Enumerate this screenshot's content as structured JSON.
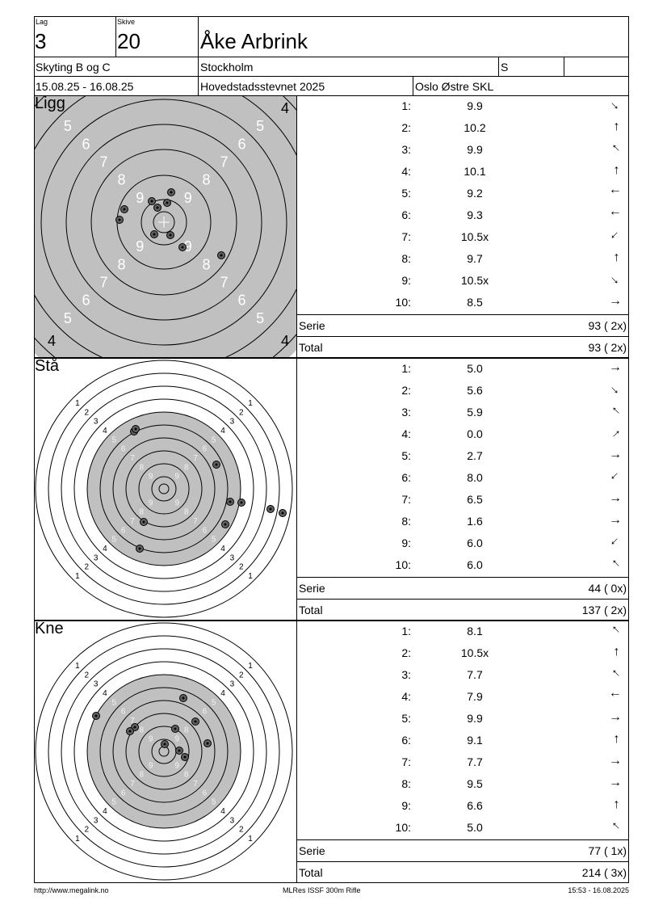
{
  "header": {
    "lag_label": "Lag",
    "lag": "3",
    "skive_label": "Skive",
    "skive": "20",
    "name": "Åke Arbrink",
    "class": "Skyting B og C",
    "city": "Stockholm",
    "flag": "S",
    "extra": "",
    "dates": "15.08.25 - 16.08.25",
    "event": "Hovedstadsstevnet 2025",
    "club": "Oslo Østre SKL"
  },
  "sections": [
    {
      "title": "Ligg",
      "corner_label": "4",
      "shots": [
        {
          "n": "1:",
          "v": "9.9",
          "dir": "down-right"
        },
        {
          "n": "2:",
          "v": "10.2",
          "dir": "up"
        },
        {
          "n": "3:",
          "v": "9.9",
          "dir": "up-left"
        },
        {
          "n": "4:",
          "v": "10.1",
          "dir": "up"
        },
        {
          "n": "5:",
          "v": "9.2",
          "dir": "left"
        },
        {
          "n": "6:",
          "v": "9.3",
          "dir": "left"
        },
        {
          "n": "7:",
          "v": "10.5x",
          "dir": "down-left"
        },
        {
          "n": "8:",
          "v": "9.7",
          "dir": "up"
        },
        {
          "n": "9:",
          "v": "10.5x",
          "dir": "down-right"
        },
        {
          "n": "10:",
          "v": "8.5",
          "dir": "right"
        }
      ],
      "serie_label": "Serie",
      "serie": "93 ( 2x)",
      "total_label": "Total",
      "total": "93 ( 2x)"
    },
    {
      "title": "Stå",
      "shots": [
        {
          "n": "1:",
          "v": "5.0",
          "dir": "right"
        },
        {
          "n": "2:",
          "v": "5.6",
          "dir": "down-right"
        },
        {
          "n": "3:",
          "v": "5.9",
          "dir": "up-left"
        },
        {
          "n": "4:",
          "v": "0.0",
          "dir": "up-right"
        },
        {
          "n": "5:",
          "v": "2.7",
          "dir": "right"
        },
        {
          "n": "6:",
          "v": "8.0",
          "dir": "down-left"
        },
        {
          "n": "7:",
          "v": "6.5",
          "dir": "right"
        },
        {
          "n": "8:",
          "v": "1.6",
          "dir": "right"
        },
        {
          "n": "9:",
          "v": "6.0",
          "dir": "down-left"
        },
        {
          "n": "10:",
          "v": "6.0",
          "dir": "up-left"
        }
      ],
      "serie_label": "Serie",
      "serie": "44 ( 0x)",
      "total_label": "Total",
      "total": "137 ( 2x)"
    },
    {
      "title": "Kne",
      "shots": [
        {
          "n": "1:",
          "v": "8.1",
          "dir": "up-left"
        },
        {
          "n": "2:",
          "v": "10.5x",
          "dir": "up"
        },
        {
          "n": "3:",
          "v": "7.7",
          "dir": "up-left"
        },
        {
          "n": "4:",
          "v": "7.9",
          "dir": "left"
        },
        {
          "n": "5:",
          "v": "9.9",
          "dir": "right"
        },
        {
          "n": "6:",
          "v": "9.1",
          "dir": "up"
        },
        {
          "n": "7:",
          "v": "7.7",
          "dir": "right"
        },
        {
          "n": "8:",
          "v": "9.5",
          "dir": "right"
        },
        {
          "n": "9:",
          "v": "6.6",
          "dir": "up"
        },
        {
          "n": "10:",
          "v": "5.0",
          "dir": "up-left"
        }
      ],
      "serie_label": "Serie",
      "serie": "77 ( 1x)",
      "total_label": "Total",
      "total": "214 ( 3x)"
    }
  ],
  "footer": {
    "left": "http://www.megalink.no",
    "center": "MLRes ISSF 300m Rifle",
    "right": "15:53 - 16.08.2025"
  },
  "colors": {
    "target_grey": "#c0c0c0",
    "shot": "#606060"
  }
}
